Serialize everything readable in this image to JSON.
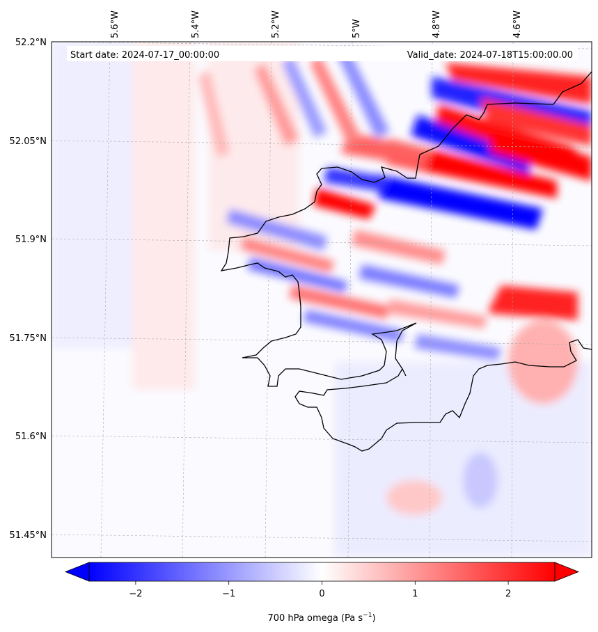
{
  "header": {
    "start_date": "Start date: 2024-07-17_00:00:00",
    "valid_date": "Valid_date: 2024-07-18T15:00:00.00"
  },
  "map": {
    "lon_labels": [
      "5.6°W",
      "5.4°W",
      "5.2°W",
      "5°W",
      "4.8°W",
      "4.6°W"
    ],
    "lat_labels": [
      "52.2°N",
      "52.05°N",
      "51.9°N",
      "51.75°N",
      "51.6°N",
      "51.45°N"
    ],
    "colormap": "bwr",
    "low_color": "#0000ff",
    "mid_color": "#ffffff",
    "high_color": "#ff0000",
    "coastline_color": "#000000",
    "gridlines": true
  },
  "colorbar": {
    "label": "700 hPa omega (Pa s",
    "label_sup": "−1",
    "label_close": ")",
    "ticks": [
      "−2",
      "−1",
      "0",
      "1",
      "2"
    ],
    "tick_values": [
      -2,
      -1,
      0,
      1,
      2
    ],
    "vmin": -2.5,
    "vmax": 2.5,
    "extend": "both"
  }
}
